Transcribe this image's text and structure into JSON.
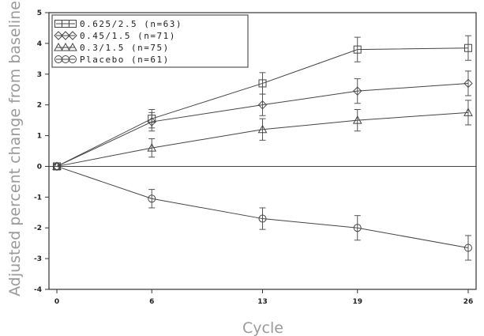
{
  "chart_data": {
    "type": "line",
    "xlabel": "Cycle",
    "ylabel": "Adjusted percent change from baseline",
    "x": [
      0,
      6,
      13,
      19,
      26
    ],
    "xticks": [
      "0",
      "6",
      "13",
      "19",
      "26"
    ],
    "yticks": [
      "5",
      "4",
      "3",
      "2",
      "1",
      "0",
      "-1",
      "-2",
      "-3",
      "-4"
    ],
    "xlim": [
      -0.5,
      26.5
    ],
    "ylim": [
      -4,
      5
    ],
    "grid": false,
    "reference_line_y": 0,
    "legend_position": "top-left",
    "series": [
      {
        "name": "0.625/2.5 (n=63)",
        "marker": "square",
        "values": [
          0,
          1.55,
          2.7,
          3.8,
          3.85
        ],
        "errors": [
          0,
          0.3,
          0.35,
          0.4,
          0.4
        ]
      },
      {
        "name": "0.45/1.5 (n=71)",
        "marker": "diamond",
        "values": [
          0,
          1.45,
          2.0,
          2.45,
          2.7
        ],
        "errors": [
          0,
          0.3,
          0.35,
          0.4,
          0.4
        ]
      },
      {
        "name": "0.3/1.5 (n=75)",
        "marker": "triangle",
        "values": [
          0,
          0.6,
          1.2,
          1.5,
          1.75
        ],
        "errors": [
          0,
          0.3,
          0.35,
          0.35,
          0.4
        ]
      },
      {
        "name": "Placebo (n=61)",
        "marker": "circle",
        "values": [
          0,
          -1.05,
          -1.7,
          -2.0,
          -2.65
        ],
        "errors": [
          0,
          0.3,
          0.35,
          0.4,
          0.4
        ]
      }
    ]
  }
}
